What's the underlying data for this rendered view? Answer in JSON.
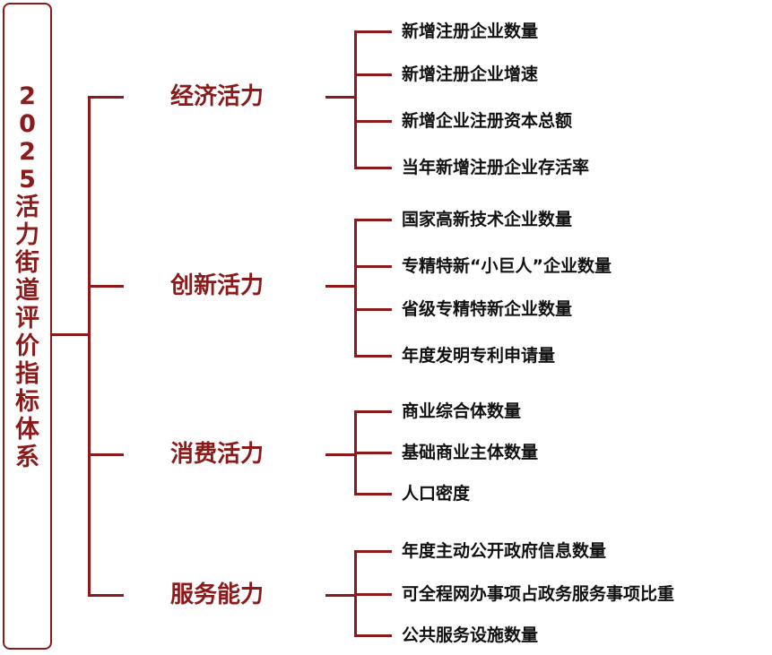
{
  "root": {
    "chars": [
      "2",
      "0",
      "2",
      "5",
      "活",
      "力",
      "街",
      "道",
      "评",
      "价",
      "指",
      "标",
      "体",
      "系"
    ]
  },
  "dimensions": [
    {
      "label": "经济活力",
      "items": [
        "新增注册企业数量",
        "新增注册企业增速",
        "新增企业注册资本总额",
        "当年新增注册企业存活率"
      ]
    },
    {
      "label": "创新活力",
      "items": [
        "国家高新技术企业数量",
        "专精特新“小巨人”企业数量",
        "省级专精特新企业数量",
        "年度发明专利申请量"
      ]
    },
    {
      "label": "消费活力",
      "items": [
        "商业综合体数量",
        "基础商业主体数量",
        "人口密度"
      ]
    },
    {
      "label": "服务能力",
      "items": [
        "年度主动公开政府信息数量",
        "可全程网办事项占政务服务事项比重",
        "公共服务设施数量"
      ]
    }
  ],
  "colors": {
    "accent": "#8b1a1a",
    "item_text": "#111111"
  }
}
